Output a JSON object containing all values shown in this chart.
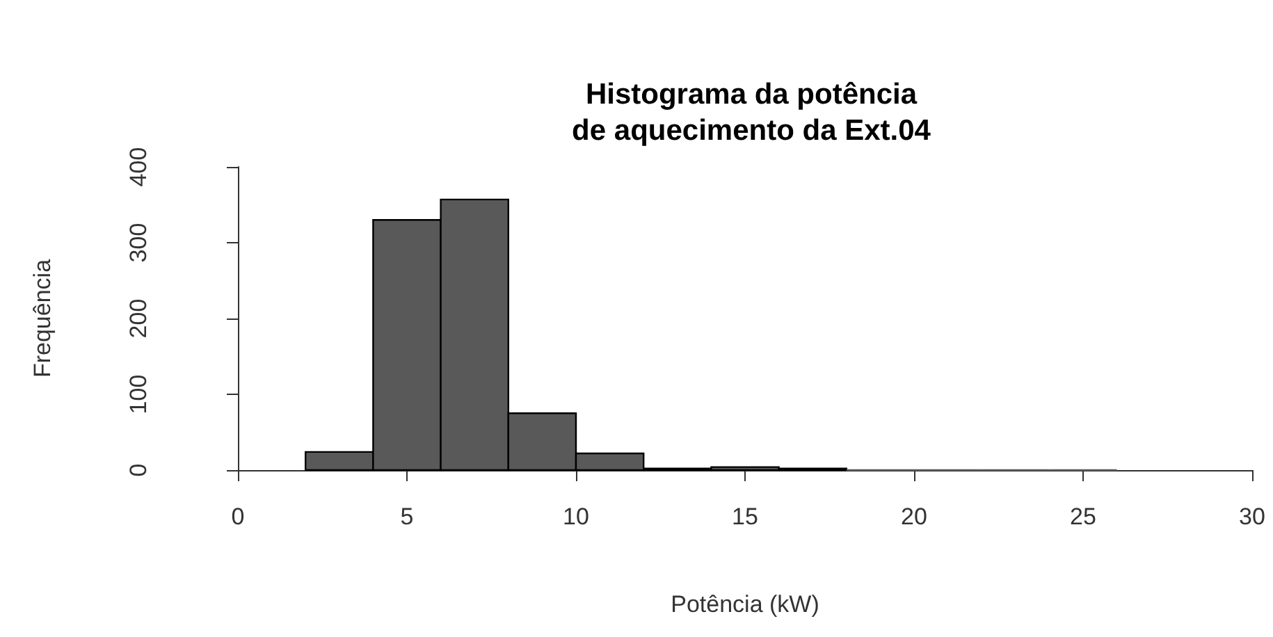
{
  "chart_data": {
    "type": "histogram",
    "title": "Histograma da potência\nde aquecimento da Ext.04",
    "xlabel": "Potência (kW)",
    "ylabel": "Frequência",
    "bins": [
      2,
      4,
      6,
      8,
      10,
      12,
      14,
      16,
      18,
      20,
      22,
      24,
      26
    ],
    "values": [
      24,
      330,
      357,
      75,
      22,
      2,
      4,
      2,
      0,
      0,
      0,
      0
    ],
    "color": "#595959",
    "xlim": [
      0,
      30
    ],
    "xticks": [
      0,
      5,
      10,
      15,
      20,
      25,
      30
    ],
    "ylim": [
      0,
      400
    ],
    "yticks": [
      0,
      100,
      200,
      300,
      400
    ],
    "grid": false
  }
}
